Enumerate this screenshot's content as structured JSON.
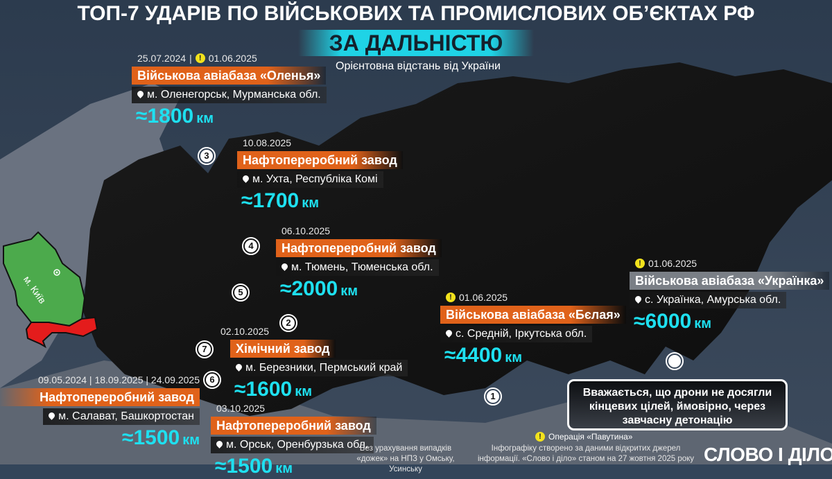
{
  "header": {
    "title": "ТОП-7 УДАРІВ ПО ВІЙСЬКОВИХ ТА ПРОМИСЛОВИХ ОБ’ЄКТАХ РФ",
    "banner": "ЗА ДАЛЬНІСТЮ",
    "subtitle": "Орієнтовна відстань від України"
  },
  "colors": {
    "accent_cyan": "#1ee0f0",
    "label_orange": "#e0621a",
    "ukraine_green": "#4caa4c",
    "occupied_red": "#e41c1c",
    "warning_yellow": "#f2e21c"
  },
  "ukraine_map": {
    "city_label": "м. Київ"
  },
  "strikes": [
    {
      "dates": [
        {
          "text": "25.07.2024",
          "warning": false
        },
        {
          "text": "|",
          "warning": false
        },
        {
          "text": "01.06.2025",
          "warning": true
        }
      ],
      "label": "Військова авіабаза «Оленья»",
      "label_color": "#e0621a",
      "location": "м. Оленегорськ, Мурманська обл.",
      "distance": "≈1800",
      "unit": "км"
    },
    {
      "dates": [
        {
          "text": "10.08.2025",
          "warning": false
        }
      ],
      "label": "Нафтопереробний завод",
      "label_color": "#e0621a",
      "location": "м. Ухта, Республіка Комі",
      "distance": "≈1700",
      "unit": "км"
    },
    {
      "dates": [
        {
          "text": "06.10.2025",
          "warning": false
        }
      ],
      "label": "Нафтопереробний завод",
      "label_color": "#e0621a",
      "location": "м. Тюмень, Тюменська обл.",
      "distance": "≈2000",
      "unit": "км"
    },
    {
      "dates": [
        {
          "text": "02.10.2025",
          "warning": false
        }
      ],
      "label": "Хімічний завод",
      "label_color": "#e0621a",
      "location": "м. Березники, Пермський край",
      "distance": "≈1600",
      "unit": "км"
    },
    {
      "dates": [
        {
          "text": "09.05.2024 | 18.09.2025 | 24.09.2025",
          "warning": false
        }
      ],
      "label": "Нафтопереробний завод",
      "label_color": "#e0621a",
      "location": "м. Салават, Башкортостан",
      "distance": "≈1500",
      "unit": "км"
    },
    {
      "dates": [
        {
          "text": "03.10.2025",
          "warning": false
        }
      ],
      "label": "Нафтопереробний завод",
      "label_color": "#e0621a",
      "location": "м. Орськ, Оренбурзька обл.",
      "distance": "≈1500",
      "unit": "км"
    },
    {
      "dates": [
        {
          "text": "01.06.2025",
          "warning": true
        }
      ],
      "label": "Військова авіабаза «Бєлая»",
      "label_color": "#e0621a",
      "location": "с. Средній, Іркутська обл.",
      "distance": "≈4400",
      "unit": "км"
    },
    {
      "dates": [
        {
          "text": "01.06.2025",
          "warning": true
        }
      ],
      "label": "Військова авіабаза «Українка»",
      "label_color": "#7a7f86",
      "location": "с. Українка, Амурська обл.",
      "distance": "≈6000",
      "unit": "км"
    }
  ],
  "markers": [
    "3",
    "4",
    "5",
    "2",
    "7",
    "6",
    "1",
    ""
  ],
  "note": "Вважається, що дрони не досягли кінцевих цілей, ймовірно, через завчасну детонацію",
  "legend": {
    "icon": "warning-icon",
    "label": "Операція «Павутина»"
  },
  "footer": {
    "disclaimer": "Без урахування випадків «дожек» на НПЗ у Омську, Усинську",
    "source": "Інфографіку створено за даними відкритих джерел інформації. «Слово і діло» станом на 27 жовтня 2025 року",
    "logo": "СЛОВО І ДІЛО"
  }
}
